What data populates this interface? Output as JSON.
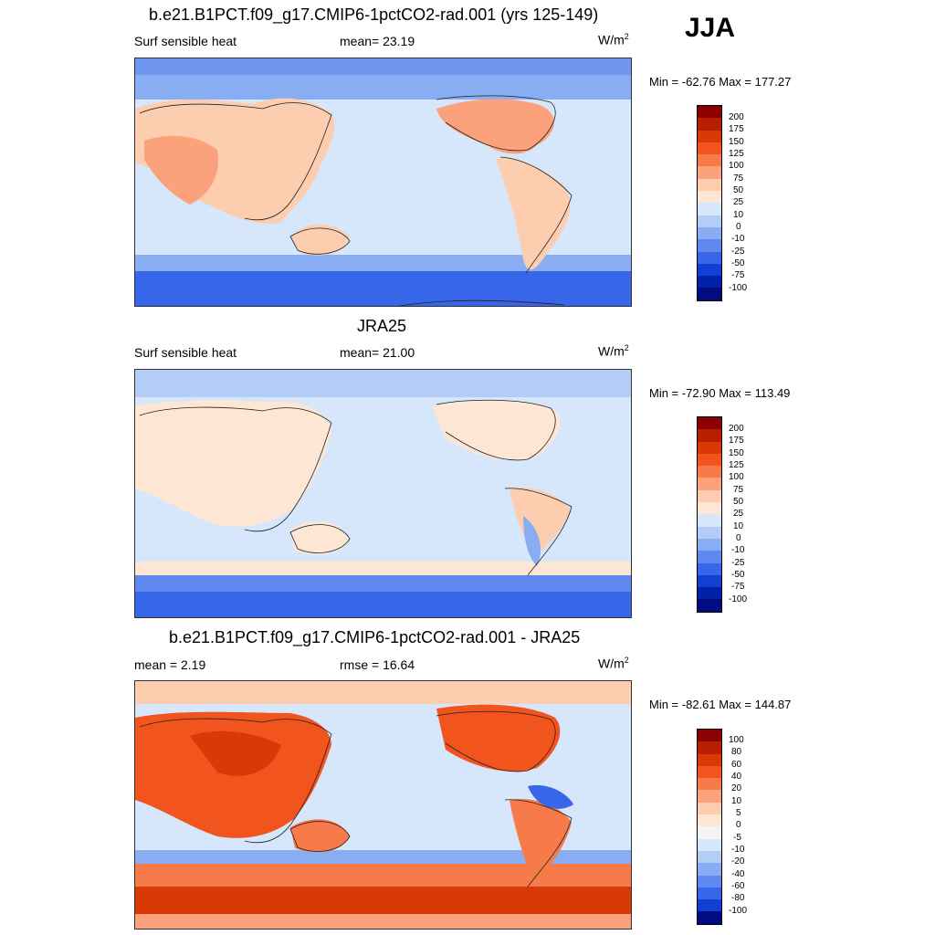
{
  "season": "JJA",
  "panels": [
    {
      "title": "b.e21.B1PCT.f09_g17.CMIP6-1pctCO2-rad.001 (yrs 125-149)",
      "left_label": "Surf sensible heat",
      "mid_label": "mean=  23.19",
      "units": "W/m",
      "units_sup": "2",
      "minmax": "Min = -62.76 Max = 177.27",
      "colorbar": {
        "labels": [
          "200",
          "175",
          "150",
          "125",
          "100",
          "75",
          "50",
          "25",
          "10",
          "0",
          "-10",
          "-25",
          "-50",
          "-75",
          "-100"
        ],
        "colors": [
          "#8b0000",
          "#b81e00",
          "#d93a05",
          "#f2541e",
          "#f77a4a",
          "#fba27c",
          "#fdcdb0",
          "#fde6d4",
          "#d7e7fb",
          "#b3cdf7",
          "#89adf2",
          "#5f89ee",
          "#3767e8",
          "#1240d4",
          "#0020a8",
          "#000c80"
        ]
      }
    },
    {
      "title": "JRA25",
      "left_label": "Surf sensible heat",
      "mid_label": "mean=  21.00",
      "units": "W/m",
      "units_sup": "2",
      "minmax": "Min = -72.90 Max = 113.49",
      "colorbar": {
        "labels": [
          "200",
          "175",
          "150",
          "125",
          "100",
          "75",
          "50",
          "25",
          "10",
          "0",
          "-10",
          "-25",
          "-50",
          "-75",
          "-100"
        ],
        "colors": [
          "#8b0000",
          "#b81e00",
          "#d93a05",
          "#f2541e",
          "#f77a4a",
          "#fba27c",
          "#fdcdb0",
          "#fde6d4",
          "#d7e7fb",
          "#b3cdf7",
          "#89adf2",
          "#5f89ee",
          "#3767e8",
          "#1240d4",
          "#0020a8",
          "#000c80"
        ]
      }
    },
    {
      "title": "b.e21.B1PCT.f09_g17.CMIP6-1pctCO2-rad.001 - JRA25",
      "left_label": "mean =   2.19",
      "mid_label": "rmse =  16.64",
      "units": "W/m",
      "units_sup": "2",
      "minmax": "Min = -82.61 Max = 144.87",
      "colorbar": {
        "labels": [
          "100",
          "80",
          "60",
          "40",
          "20",
          "10",
          "5",
          "0",
          "-5",
          "-10",
          "-20",
          "-40",
          "-60",
          "-80",
          "-100"
        ],
        "colors": [
          "#8b0000",
          "#b81e00",
          "#d93a05",
          "#f2541e",
          "#f77a4a",
          "#fba27c",
          "#fdcdb0",
          "#fde6d4",
          "#f4f4f4",
          "#d7e7fb",
          "#b3cdf7",
          "#89adf2",
          "#5f89ee",
          "#3767e8",
          "#1240d4",
          "#000c80"
        ]
      }
    }
  ]
}
